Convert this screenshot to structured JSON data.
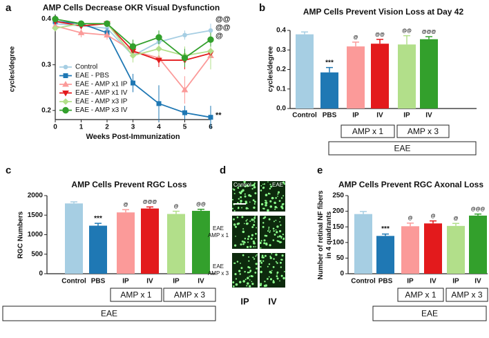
{
  "chart_data": [
    {
      "type": "line",
      "panel": "a",
      "title": "AMP Cells Decrease OKR Visual Dysfunction",
      "ylabel": "cycles/degree",
      "xlabel": "Weeks Post-Immunization",
      "x": [
        0,
        1,
        2,
        3,
        4,
        5,
        6
      ],
      "xlim": [
        0,
        6
      ],
      "xticks": [
        0,
        1,
        2,
        3,
        4,
        5,
        6
      ],
      "ylim": [
        0.18,
        0.41
      ],
      "yticks": [
        0.2,
        0.3,
        0.4
      ],
      "series": [
        {
          "name": "Control",
          "color": "#a6cee3",
          "marker": "circle",
          "values": [
            0.39,
            0.385,
            0.38,
            0.32,
            0.35,
            0.365,
            0.375
          ],
          "errors": [
            0.005,
            0.005,
            0.005,
            0.01,
            0.01,
            0.01,
            0.015
          ]
        },
        {
          "name": "EAE - PBS",
          "color": "#1f78b4",
          "marker": "square",
          "values": [
            0.395,
            0.39,
            0.37,
            0.26,
            0.215,
            0.195,
            0.185
          ],
          "errors": [
            0.005,
            0.005,
            0.01,
            0.02,
            0.04,
            0.015,
            0.025
          ]
        },
        {
          "name": "EAE - AMP x1 IP",
          "color": "#fb9a99",
          "marker": "triangle-up",
          "values": [
            0.385,
            0.37,
            0.365,
            0.33,
            0.315,
            0.245,
            0.32
          ],
          "errors": [
            0.01,
            0.01,
            0.01,
            0.015,
            0.02,
            0.03,
            0.03
          ]
        },
        {
          "name": "EAE - AMP x1 IV",
          "color": "#e31a1c",
          "marker": "triangle-down",
          "values": [
            0.395,
            0.385,
            0.39,
            0.33,
            0.31,
            0.31,
            0.325
          ],
          "errors": [
            0.005,
            0.005,
            0.005,
            0.015,
            0.015,
            0.02,
            0.02
          ]
        },
        {
          "name": "EAE - AMP x3 IP",
          "color": "#b2df8a",
          "marker": "diamond",
          "values": [
            0.38,
            0.39,
            0.39,
            0.32,
            0.335,
            0.32,
            0.33
          ],
          "errors": [
            0.005,
            0.005,
            0.005,
            0.015,
            0.02,
            0.02,
            0.04
          ]
        },
        {
          "name": "EAE - AMP x3 IV",
          "color": "#33a02c",
          "marker": "circle-big",
          "values": [
            0.4,
            0.39,
            0.39,
            0.34,
            0.36,
            0.315,
            0.355
          ],
          "errors": [
            0.005,
            0.005,
            0.005,
            0.015,
            0.015,
            0.02,
            0.015
          ]
        }
      ],
      "annotations": [
        "**",
        "@@",
        "@@",
        "@"
      ]
    },
    {
      "type": "bar",
      "panel": "b",
      "title": "AMP Cells Prevent Vision Loss at Day 42",
      "ylabel": "cycles/degree",
      "categories": [
        "Control",
        "PBS",
        "IP",
        "IV",
        "IP",
        "IV"
      ],
      "values": [
        0.38,
        0.185,
        0.318,
        0.332,
        0.328,
        0.355
      ],
      "errors": [
        0.012,
        0.025,
        0.022,
        0.022,
        0.045,
        0.013
      ],
      "colors": [
        "#a6cee3",
        "#1f78b4",
        "#fb9a99",
        "#e31a1c",
        "#b2df8a",
        "#33a02c"
      ],
      "significance": [
        null,
        "***",
        "@",
        "@@",
        "@@",
        "@@@"
      ],
      "ylim": [
        0,
        0.4
      ],
      "yticks": [
        {
          "value": 0,
          "label": "0.0"
        },
        0.1,
        0.2,
        0.3,
        0.4
      ],
      "group_labels": [
        "AMP x 1",
        "AMP x 3"
      ],
      "outer_label": "EAE"
    },
    {
      "type": "bar",
      "panel": "c",
      "title": "AMP Cells Prevent RGC Loss",
      "ylabel": "RGC Numbers",
      "categories": [
        "Control",
        "PBS",
        "IP",
        "IV",
        "IP",
        "IV"
      ],
      "values": [
        1800,
        1230,
        1570,
        1670,
        1530,
        1610
      ],
      "errors": [
        40,
        60,
        70,
        40,
        70,
        40
      ],
      "colors": [
        "#a6cee3",
        "#1f78b4",
        "#fb9a99",
        "#e31a1c",
        "#b2df8a",
        "#33a02c"
      ],
      "significance": [
        null,
        "***",
        "@",
        "@@@",
        "@",
        "@@"
      ],
      "ylim": [
        0,
        2000
      ],
      "yticks": [
        0,
        500,
        1000,
        1500,
        2000
      ],
      "group_labels": [
        "AMP x 1",
        "AMP x 3"
      ],
      "outer_label": "EAE"
    },
    {
      "type": "image",
      "panel": "d",
      "column_labels": [
        "IP",
        "IV"
      ],
      "inset_labels": [
        "Control",
        "EAE"
      ],
      "row_labels": [
        "EAE\nAMP x 1",
        "EAE\nAMP x 3"
      ]
    },
    {
      "type": "bar",
      "panel": "e",
      "title": "AMP Cells Prevent RGC Axonal Loss",
      "ylabel": "Number of retinal NF fibers\nin 4 quadrants",
      "categories": [
        "Control",
        "PBS",
        "IP",
        "IV",
        "IP",
        "IV"
      ],
      "values": [
        191,
        121,
        152,
        161,
        153,
        186
      ],
      "errors": [
        8,
        6,
        10,
        8,
        8,
        5
      ],
      "colors": [
        "#a6cee3",
        "#1f78b4",
        "#fb9a99",
        "#e31a1c",
        "#b2df8a",
        "#33a02c"
      ],
      "significance": [
        null,
        "***",
        "@",
        "@",
        "@",
        "@@@"
      ],
      "ylim": [
        0,
        250
      ],
      "yticks": [
        0,
        50,
        100,
        150,
        200,
        250
      ],
      "group_labels": [
        "AMP x 1",
        "AMP x 3"
      ],
      "outer_label": "EAE"
    }
  ]
}
